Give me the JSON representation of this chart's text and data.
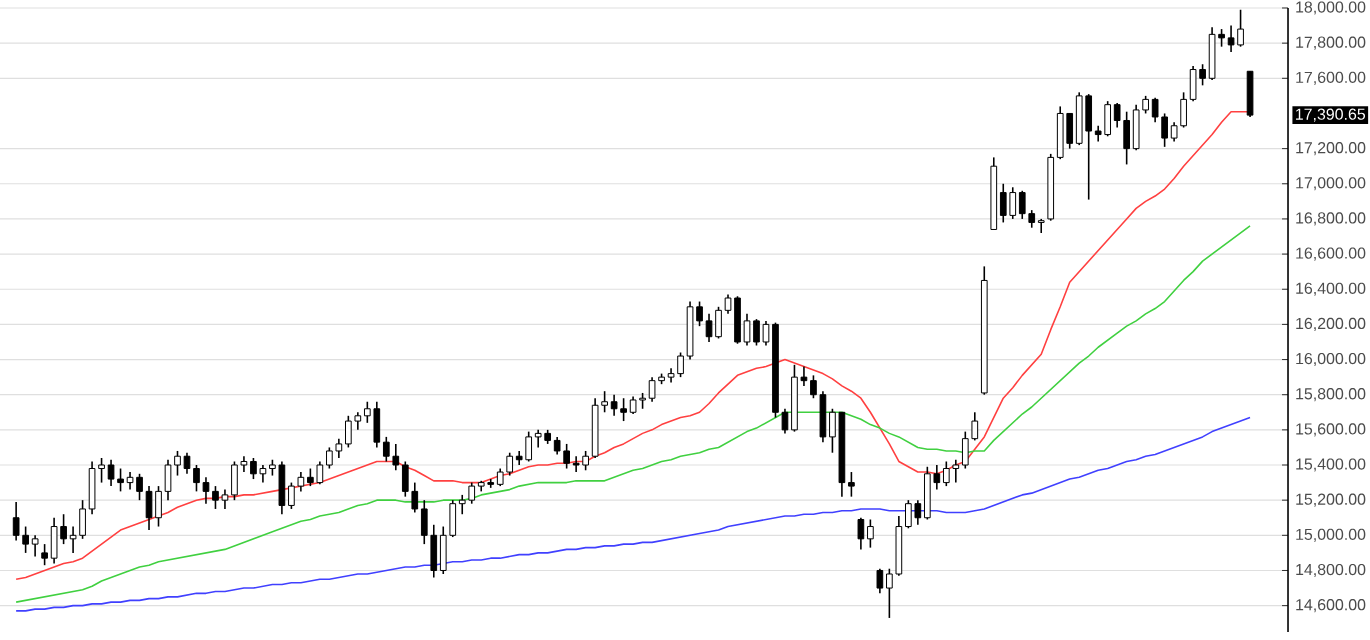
{
  "chart_data": {
    "type": "candlestick",
    "color": "#000000",
    "tick_labels": "y",
    "grid": "y",
    "categories": [
      null,
      null,
      null,
      null,
      null,
      null,
      null,
      null,
      null,
      null,
      null,
      null,
      null,
      null,
      null,
      null,
      null,
      null,
      null,
      null,
      null,
      null,
      null,
      null,
      null,
      null,
      null,
      null,
      null,
      null,
      null,
      null,
      null,
      null,
      null,
      null,
      null,
      null,
      null,
      null,
      null,
      null,
      null,
      null,
      null,
      null,
      null,
      null,
      null,
      null,
      null,
      null,
      null,
      null,
      null,
      null,
      null,
      null,
      null,
      null,
      null,
      null,
      null,
      null,
      null,
      null,
      null,
      null,
      null,
      null,
      null,
      null,
      null,
      null,
      null,
      null,
      null,
      null,
      null,
      null,
      null,
      null,
      null,
      null,
      null,
      null,
      null,
      null,
      null,
      null,
      null,
      null,
      null,
      null,
      null,
      null,
      null,
      null,
      null,
      null,
      null,
      null,
      null,
      null,
      null,
      null,
      null,
      null,
      null,
      null,
      null,
      null,
      null,
      null,
      null,
      null,
      null,
      null,
      null,
      null,
      null,
      null,
      null,
      null,
      null,
      null,
      null,
      null,
      null,
      null,
      null
    ],
    "ohlc": [
      [
        15100,
        15190,
        14970,
        15000
      ],
      [
        15000,
        15050,
        14900,
        14950
      ],
      [
        14950,
        15000,
        14880,
        14980
      ],
      [
        14900,
        14950,
        14830,
        14870
      ],
      [
        14870,
        15100,
        14840,
        15050
      ],
      [
        15050,
        15120,
        14950,
        14980
      ],
      [
        14980,
        15050,
        14900,
        15000
      ],
      [
        15000,
        15200,
        14980,
        15150
      ],
      [
        15150,
        15420,
        15120,
        15380
      ],
      [
        15380,
        15440,
        15300,
        15400
      ],
      [
        15400,
        15430,
        15280,
        15320
      ],
      [
        15320,
        15380,
        15250,
        15300
      ],
      [
        15300,
        15360,
        15260,
        15330
      ],
      [
        15330,
        15350,
        15200,
        15250
      ],
      [
        15250,
        15280,
        15030,
        15100
      ],
      [
        15100,
        15280,
        15050,
        15250
      ],
      [
        15250,
        15430,
        15200,
        15400
      ],
      [
        15400,
        15480,
        15340,
        15450
      ],
      [
        15450,
        15470,
        15350,
        15380
      ],
      [
        15380,
        15400,
        15250,
        15300
      ],
      [
        15300,
        15330,
        15180,
        15250
      ],
      [
        15250,
        15280,
        15150,
        15200
      ],
      [
        15200,
        15260,
        15150,
        15230
      ],
      [
        15230,
        15420,
        15200,
        15400
      ],
      [
        15400,
        15450,
        15360,
        15420
      ],
      [
        15420,
        15440,
        15320,
        15350
      ],
      [
        15350,
        15400,
        15300,
        15380
      ],
      [
        15380,
        15430,
        15340,
        15400
      ],
      [
        15400,
        15420,
        15120,
        15170
      ],
      [
        15170,
        15300,
        15150,
        15280
      ],
      [
        15280,
        15360,
        15250,
        15330
      ],
      [
        15330,
        15380,
        15280,
        15300
      ],
      [
        15300,
        15420,
        15290,
        15400
      ],
      [
        15400,
        15500,
        15380,
        15480
      ],
      [
        15480,
        15550,
        15440,
        15520
      ],
      [
        15520,
        15680,
        15500,
        15650
      ],
      [
        15650,
        15700,
        15600,
        15680
      ],
      [
        15680,
        15760,
        15640,
        15720
      ],
      [
        15720,
        15760,
        15500,
        15530
      ],
      [
        15530,
        15560,
        15420,
        15450
      ],
      [
        15450,
        15520,
        15370,
        15400
      ],
      [
        15400,
        15420,
        15220,
        15250
      ],
      [
        15250,
        15300,
        15130,
        15150
      ],
      [
        15150,
        15200,
        14950,
        15000
      ],
      [
        15000,
        15060,
        14760,
        14800
      ],
      [
        14800,
        15050,
        14780,
        15000
      ],
      [
        15000,
        15200,
        14990,
        15180
      ],
      [
        15180,
        15230,
        15120,
        15200
      ],
      [
        15200,
        15300,
        15180,
        15280
      ],
      [
        15280,
        15310,
        15250,
        15300
      ],
      [
        15300,
        15320,
        15270,
        15290
      ],
      [
        15290,
        15380,
        15280,
        15360
      ],
      [
        15360,
        15470,
        15340,
        15450
      ],
      [
        15450,
        15480,
        15400,
        15430
      ],
      [
        15430,
        15590,
        15420,
        15560
      ],
      [
        15560,
        15600,
        15500,
        15580
      ],
      [
        15580,
        15600,
        15520,
        15540
      ],
      [
        15540,
        15560,
        15460,
        15480
      ],
      [
        15480,
        15520,
        15380,
        15410
      ],
      [
        15410,
        15450,
        15360,
        15400
      ],
      [
        15400,
        15480,
        15370,
        15450
      ],
      [
        15450,
        15780,
        15440,
        15740
      ],
      [
        15740,
        15820,
        15700,
        15760
      ],
      [
        15760,
        15800,
        15680,
        15720
      ],
      [
        15720,
        15780,
        15650,
        15700
      ],
      [
        15700,
        15790,
        15690,
        15770
      ],
      [
        15770,
        15810,
        15720,
        15780
      ],
      [
        15780,
        15900,
        15760,
        15880
      ],
      [
        15880,
        15920,
        15860,
        15900
      ],
      [
        15900,
        15950,
        15870,
        15920
      ],
      [
        15920,
        16040,
        15900,
        16020
      ],
      [
        16020,
        16330,
        16000,
        16300
      ],
      [
        16300,
        16330,
        16190,
        16220
      ],
      [
        16220,
        16260,
        16100,
        16130
      ],
      [
        16130,
        16300,
        16120,
        16280
      ],
      [
        16280,
        16370,
        16260,
        16350
      ],
      [
        16350,
        16360,
        16090,
        16100
      ],
      [
        16100,
        16260,
        16080,
        16220
      ],
      [
        16220,
        16230,
        16080,
        16100
      ],
      [
        16100,
        16220,
        16080,
        16200
      ],
      [
        16200,
        16210,
        15670,
        15700
      ],
      [
        15700,
        15720,
        15580,
        15600
      ],
      [
        15600,
        15970,
        15590,
        15900
      ],
      [
        15900,
        15960,
        15850,
        15880
      ],
      [
        15880,
        15910,
        15780,
        15800
      ],
      [
        15800,
        15820,
        15530,
        15560
      ],
      [
        15560,
        15720,
        15470,
        15700
      ],
      [
        15700,
        15700,
        15220,
        15300
      ],
      [
        15300,
        15360,
        15220,
        15280
      ],
      [
        15090,
        15100,
        14920,
        14980
      ],
      [
        14980,
        15090,
        14930,
        15050
      ],
      [
        14800,
        14810,
        14670,
        14700
      ],
      [
        14700,
        14810,
        14530,
        14780
      ],
      [
        14780,
        15110,
        14770,
        15050
      ],
      [
        15050,
        15200,
        15040,
        15180
      ],
      [
        15180,
        15200,
        15060,
        15100
      ],
      [
        15100,
        15390,
        15090,
        15350
      ],
      [
        15350,
        15400,
        15260,
        15300
      ],
      [
        15300,
        15420,
        15280,
        15380
      ],
      [
        15380,
        15430,
        15300,
        15400
      ],
      [
        15400,
        15590,
        15380,
        15550
      ],
      [
        15550,
        15700,
        15540,
        15650
      ],
      [
        15810,
        16530,
        15800,
        16450
      ],
      [
        16740,
        17150,
        16740,
        17100
      ],
      [
        16950,
        17000,
        16780,
        16820
      ],
      [
        16820,
        16980,
        16800,
        16950
      ],
      [
        16950,
        16960,
        16800,
        16830
      ],
      [
        16830,
        16850,
        16750,
        16780
      ],
      [
        16780,
        16800,
        16720,
        16790
      ],
      [
        16800,
        17170,
        16790,
        17150
      ],
      [
        17150,
        17440,
        17140,
        17400
      ],
      [
        17400,
        17400,
        17200,
        17230
      ],
      [
        17230,
        17520,
        17220,
        17500
      ],
      [
        17500,
        17510,
        16910,
        17300
      ],
      [
        17300,
        17330,
        17240,
        17280
      ],
      [
        17280,
        17470,
        17270,
        17450
      ],
      [
        17450,
        17460,
        17320,
        17360
      ],
      [
        17360,
        17410,
        17110,
        17200
      ],
      [
        17200,
        17450,
        17190,
        17420
      ],
      [
        17420,
        17500,
        17400,
        17480
      ],
      [
        17480,
        17490,
        17350,
        17380
      ],
      [
        17380,
        17400,
        17210,
        17260
      ],
      [
        17260,
        17350,
        17240,
        17330
      ],
      [
        17330,
        17520,
        17320,
        17480
      ],
      [
        17480,
        17670,
        17470,
        17650
      ],
      [
        17650,
        17680,
        17560,
        17600
      ],
      [
        17600,
        17890,
        17590,
        17850
      ],
      [
        17850,
        17880,
        17780,
        17830
      ],
      [
        17830,
        17900,
        17750,
        17790
      ],
      [
        17790,
        17990,
        17780,
        17880
      ],
      [
        17640,
        17640,
        17380,
        17390.65
      ]
    ],
    "series": [
      {
        "type": "line",
        "color": "#ff4040",
        "values": [
          14750,
          14760,
          14780,
          14800,
          14820,
          14840,
          14850,
          14870,
          14910,
          14950,
          14990,
          15030,
          15050,
          15070,
          15090,
          15110,
          15130,
          15160,
          15180,
          15200,
          15210,
          15210,
          15220,
          15220,
          15230,
          15230,
          15240,
          15250,
          15260,
          15270,
          15280,
          15290,
          15300,
          15320,
          15340,
          15360,
          15380,
          15400,
          15420,
          15420,
          15420,
          15390,
          15370,
          15340,
          15310,
          15310,
          15310,
          15300,
          15300,
          15300,
          15320,
          15340,
          15350,
          15370,
          15390,
          15400,
          15400,
          15410,
          15410,
          15420,
          15420,
          15450,
          15470,
          15500,
          15520,
          15550,
          15580,
          15600,
          15630,
          15650,
          15670,
          15680,
          15700,
          15750,
          15810,
          15860,
          15910,
          15930,
          15950,
          15960,
          15980,
          16000,
          15980,
          15960,
          15940,
          15920,
          15890,
          15850,
          15820,
          15780,
          15700,
          15610,
          15520,
          15420,
          15390,
          15360,
          15360,
          15350,
          15370,
          15400,
          15420,
          15490,
          15560,
          15670,
          15780,
          15840,
          15910,
          15970,
          16030,
          16170,
          16300,
          16440,
          16500,
          16560,
          16620,
          16680,
          16740,
          16800,
          16860,
          16900,
          16930,
          16970,
          17030,
          17100,
          17160,
          17220,
          17280,
          17350,
          17410,
          17410,
          17410
        ]
      },
      {
        "type": "line",
        "color": "#40d040",
        "values": [
          14620,
          14630,
          14640,
          14650,
          14660,
          14670,
          14680,
          14690,
          14710,
          14740,
          14760,
          14780,
          14800,
          14820,
          14830,
          14850,
          14860,
          14870,
          14880,
          14890,
          14900,
          14910,
          14920,
          14940,
          14960,
          14980,
          15000,
          15020,
          15040,
          15060,
          15080,
          15090,
          15110,
          15120,
          15130,
          15150,
          15170,
          15180,
          15200,
          15200,
          15200,
          15190,
          15190,
          15190,
          15190,
          15200,
          15200,
          15200,
          15210,
          15230,
          15240,
          15250,
          15260,
          15280,
          15290,
          15300,
          15300,
          15300,
          15300,
          15310,
          15310,
          15310,
          15310,
          15330,
          15350,
          15370,
          15380,
          15400,
          15420,
          15430,
          15450,
          15460,
          15470,
          15490,
          15500,
          15530,
          15560,
          15590,
          15610,
          15640,
          15670,
          15700,
          15700,
          15700,
          15700,
          15700,
          15700,
          15700,
          15680,
          15660,
          15630,
          15610,
          15580,
          15560,
          15530,
          15500,
          15490,
          15490,
          15480,
          15480,
          15470,
          15480,
          15480,
          15540,
          15590,
          15640,
          15690,
          15730,
          15780,
          15830,
          15880,
          15930,
          15980,
          16020,
          16070,
          16110,
          16150,
          16190,
          16220,
          16260,
          16290,
          16330,
          16390,
          16450,
          16500,
          16560,
          16600,
          16640,
          16680,
          16720,
          16760
        ]
      },
      {
        "type": "line",
        "color": "#4040ff",
        "values": [
          14570,
          14570,
          14580,
          14580,
          14590,
          14590,
          14600,
          14600,
          14610,
          14610,
          14620,
          14620,
          14630,
          14630,
          14640,
          14640,
          14650,
          14650,
          14660,
          14670,
          14670,
          14680,
          14680,
          14690,
          14700,
          14700,
          14710,
          14720,
          14720,
          14730,
          14730,
          14740,
          14750,
          14750,
          14760,
          14770,
          14780,
          14780,
          14790,
          14800,
          14810,
          14820,
          14820,
          14830,
          14830,
          14840,
          14850,
          14850,
          14860,
          14860,
          14870,
          14870,
          14880,
          14890,
          14890,
          14900,
          14900,
          14910,
          14920,
          14920,
          14930,
          14930,
          14940,
          14940,
          14950,
          14950,
          14960,
          14960,
          14970,
          14980,
          14990,
          15000,
          15010,
          15020,
          15030,
          15050,
          15060,
          15070,
          15080,
          15090,
          15100,
          15110,
          15110,
          15120,
          15120,
          15130,
          15130,
          15140,
          15140,
          15150,
          15150,
          15150,
          15140,
          15140,
          15140,
          15140,
          15140,
          15140,
          15130,
          15130,
          15130,
          15140,
          15150,
          15170,
          15190,
          15210,
          15230,
          15240,
          15260,
          15280,
          15300,
          15320,
          15330,
          15350,
          15370,
          15380,
          15400,
          15420,
          15430,
          15450,
          15460,
          15480,
          15500,
          15520,
          15540,
          15560,
          15590,
          15610,
          15630,
          15650,
          15670
        ]
      }
    ],
    "ylim": [
      14450,
      18000
    ],
    "yticks": [
      {
        "value": 14600,
        "label": "14,600.00"
      },
      {
        "value": 14800,
        "label": "14,800.00"
      },
      {
        "value": 15000,
        "label": "15,000.00"
      },
      {
        "value": 15200,
        "label": "15,200.00"
      },
      {
        "value": 15400,
        "label": "15,400.00"
      },
      {
        "value": 15600,
        "label": "15,600.00"
      },
      {
        "value": 15800,
        "label": "15,800.00"
      },
      {
        "value": 16000,
        "label": "16,000.00"
      },
      {
        "value": 16200,
        "label": "16,200.00"
      },
      {
        "value": 16400,
        "label": "16,400.00"
      },
      {
        "value": 16600,
        "label": "16,600.00"
      },
      {
        "value": 16800,
        "label": "16,800.00"
      },
      {
        "value": 17000,
        "label": "17,000.00"
      },
      {
        "value": 17200,
        "label": "17,200.00"
      },
      {
        "value": 17600,
        "label": "17,600.00"
      },
      {
        "value": 17800,
        "label": "17,800.00"
      },
      {
        "value": 18000,
        "label": "18,000.00"
      }
    ],
    "annotations": [
      "17,390.65"
    ]
  }
}
